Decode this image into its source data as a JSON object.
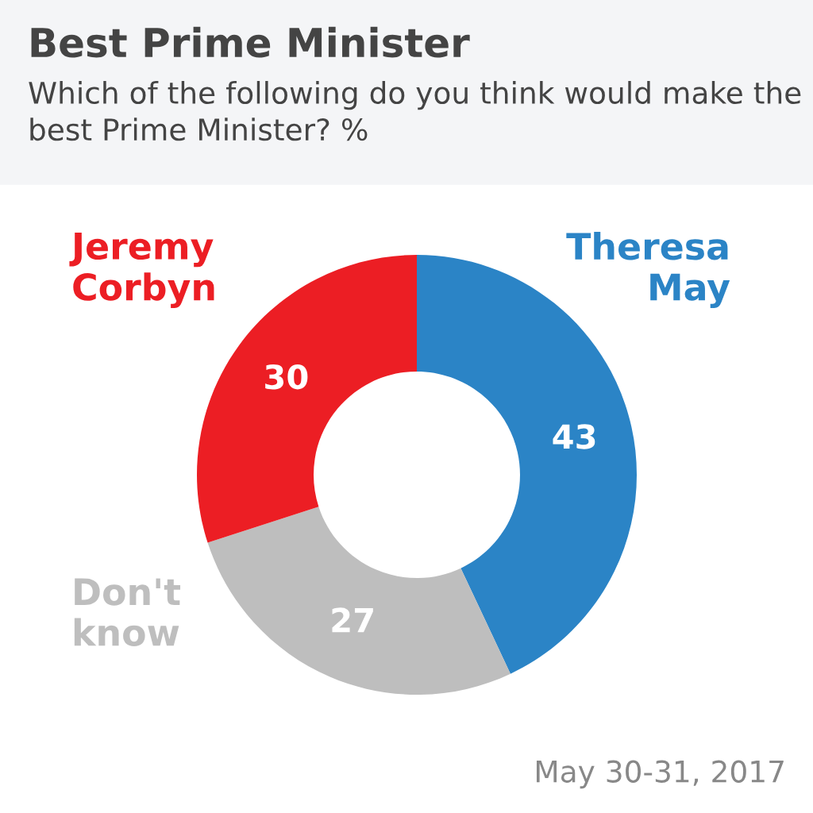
{
  "chart_data": {
    "type": "donut",
    "title": "Best Prime Minister",
    "subtitle": "Which of the following do you think would make the best Prime Minister? %",
    "categories": [
      "Theresa May",
      "Don't know",
      "Jeremy Corbyn"
    ],
    "values": [
      43,
      27,
      30
    ],
    "colors": [
      "#2b84c6",
      "#bebebe",
      "#ec1e24"
    ],
    "data_labels": true,
    "legend": false,
    "annotations": [
      "May 30-31, 2017"
    ]
  }
}
